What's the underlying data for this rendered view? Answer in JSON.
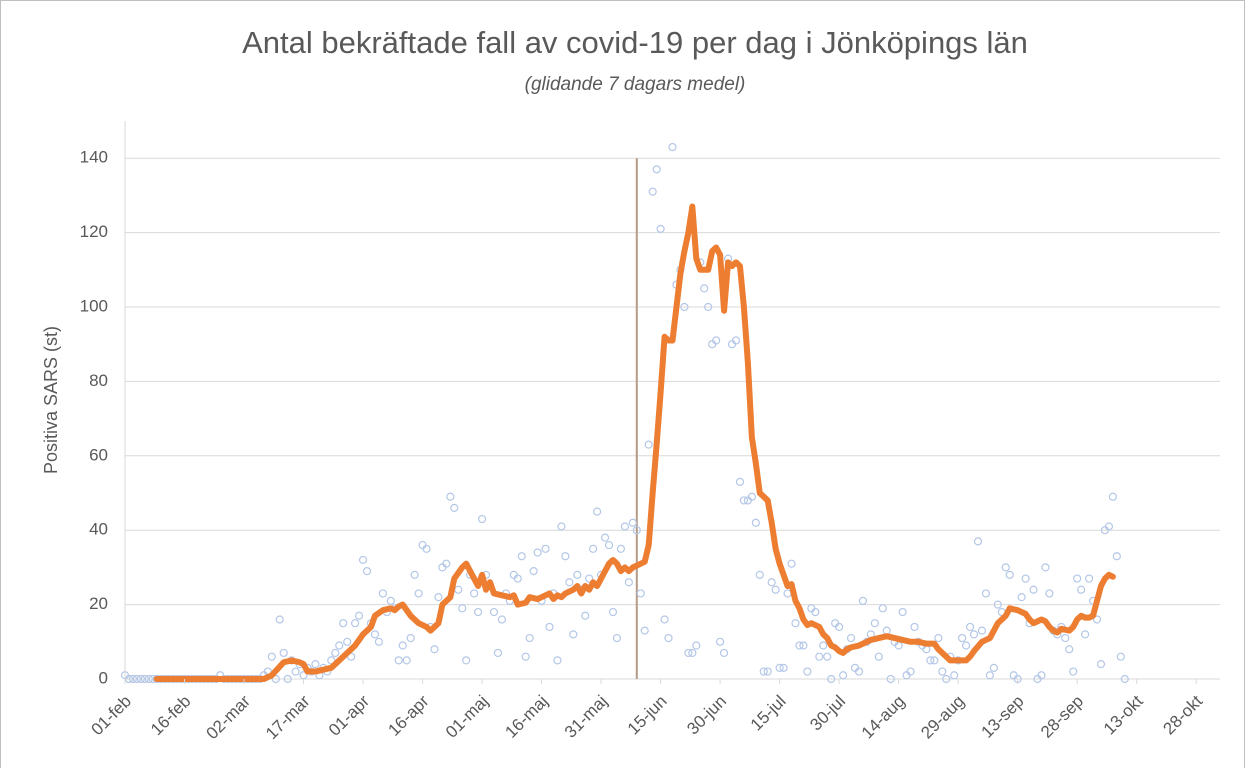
{
  "chart_data": {
    "type": "line",
    "title": "Antal bekräftade fall av covid-19 per dag i Jönköpings län",
    "subtitle": "(glidande 7 dagars medel)",
    "y_label": "Positiva SARS (st)",
    "xlim": [
      0,
      276
    ],
    "xticks": [
      {
        "value": 0,
        "label": "01-feb"
      },
      {
        "value": 15,
        "label": "16-feb"
      },
      {
        "value": 30,
        "label": "02-mar"
      },
      {
        "value": 45,
        "label": "17-mar"
      },
      {
        "value": 60,
        "label": "01-apr"
      },
      {
        "value": 75,
        "label": "16-apr"
      },
      {
        "value": 90,
        "label": "01-maj"
      },
      {
        "value": 105,
        "label": "16-maj"
      },
      {
        "value": 120,
        "label": "31-maj"
      },
      {
        "value": 135,
        "label": "15-jun"
      },
      {
        "value": 150,
        "label": "30-jun"
      },
      {
        "value": 165,
        "label": "15-jul"
      },
      {
        "value": 180,
        "label": "30-jul"
      },
      {
        "value": 195,
        "label": "14-aug"
      },
      {
        "value": 210,
        "label": "29-aug"
      },
      {
        "value": 225,
        "label": "13-sep"
      },
      {
        "value": 240,
        "label": "28-sep"
      },
      {
        "value": 255,
        "label": "13-okt"
      },
      {
        "value": 270,
        "label": "28-okt"
      }
    ],
    "ylim": [
      0,
      150
    ],
    "yticks": [
      0,
      20,
      40,
      60,
      80,
      100,
      120,
      140
    ],
    "grid": true,
    "vline": {
      "x": 129,
      "color": "#b59a85"
    },
    "series": [
      {
        "type": "scatter",
        "color": "#b4c7e7",
        "x": [
          0,
          1,
          2,
          3,
          4,
          5,
          6,
          7,
          8,
          9,
          10,
          11,
          12,
          13,
          14,
          15,
          16,
          17,
          18,
          19,
          20,
          21,
          22,
          23,
          24,
          25,
          26,
          27,
          28,
          29,
          30,
          31,
          32,
          33,
          34,
          35,
          36,
          37,
          38,
          39,
          40,
          41,
          42,
          43,
          44,
          45,
          46,
          47,
          48,
          49,
          50,
          51,
          52,
          53,
          54,
          55,
          56,
          57,
          58,
          59,
          60,
          61,
          62,
          63,
          64,
          65,
          66,
          67,
          68,
          69,
          70,
          71,
          72,
          73,
          74,
          75,
          76,
          77,
          78,
          79,
          80,
          81,
          82,
          83,
          84,
          85,
          86,
          87,
          88,
          89,
          90,
          91,
          92,
          93,
          94,
          95,
          96,
          97,
          98,
          99,
          100,
          101,
          102,
          103,
          104,
          105,
          106,
          107,
          108,
          109,
          110,
          111,
          112,
          113,
          114,
          115,
          116,
          117,
          118,
          119,
          120,
          121,
          122,
          123,
          124,
          125,
          126,
          127,
          128,
          129,
          130,
          131,
          132,
          133,
          134,
          135,
          136,
          137,
          138,
          139,
          140,
          141,
          142,
          143,
          144,
          145,
          146,
          147,
          148,
          149,
          150,
          151,
          152,
          153,
          154,
          155,
          156,
          157,
          158,
          159,
          160,
          161,
          162,
          163,
          164,
          165,
          166,
          167,
          168,
          169,
          170,
          171,
          172,
          173,
          174,
          175,
          176,
          177,
          178,
          179,
          180,
          181,
          182,
          183,
          184,
          185,
          186,
          187,
          188,
          189,
          190,
          191,
          192,
          193,
          194,
          195,
          196,
          197,
          198,
          199,
          200,
          201,
          202,
          203,
          204,
          205,
          206,
          207,
          208,
          209,
          210,
          211,
          212,
          213,
          214,
          215,
          216,
          217,
          218,
          219,
          220,
          221,
          222,
          223,
          224,
          225,
          226,
          227,
          228,
          229,
          230,
          231,
          232,
          233,
          234,
          235,
          236,
          237,
          238,
          239,
          240,
          241,
          242,
          243,
          244,
          245,
          246,
          247,
          248,
          249,
          250,
          251,
          252
        ],
        "values": [
          1,
          0,
          0,
          0,
          0,
          0,
          0,
          0,
          0,
          0,
          0,
          0,
          0,
          0,
          0,
          0,
          0,
          0,
          0,
          0,
          0,
          0,
          0,
          0,
          1,
          0,
          0,
          0,
          0,
          0,
          0,
          0,
          0,
          0,
          0,
          1,
          2,
          6,
          0,
          16,
          7,
          0,
          5,
          2,
          4,
          1,
          3,
          2,
          4,
          1,
          3,
          2,
          5,
          7,
          9,
          15,
          10,
          6,
          15,
          17,
          32,
          29,
          15,
          12,
          10,
          23,
          18,
          21,
          19,
          5,
          9,
          5,
          11,
          28,
          23,
          36,
          35,
          14,
          8,
          22,
          30,
          31,
          49,
          46,
          24,
          19,
          5,
          28,
          23,
          18,
          43,
          28,
          25,
          18,
          7,
          16,
          23,
          21,
          28,
          27,
          33,
          6,
          11,
          29,
          34,
          21,
          35,
          14,
          23,
          5,
          41,
          33,
          26,
          12,
          28,
          24,
          17,
          27,
          35,
          45,
          28,
          38,
          36,
          18,
          11,
          35,
          41,
          26,
          42,
          40,
          23,
          13,
          63,
          131,
          137,
          121,
          16,
          11,
          143,
          106,
          110,
          100,
          7,
          7,
          9,
          112,
          105,
          100,
          90,
          91,
          10,
          7,
          113,
          90,
          91,
          53,
          48,
          48,
          49,
          42,
          28,
          2,
          2,
          26,
          24,
          3,
          3,
          23,
          31,
          15,
          9,
          9,
          2,
          19,
          18,
          6,
          9,
          6,
          0,
          15,
          14,
          1,
          8,
          11,
          3,
          2,
          21,
          10,
          12,
          15,
          6,
          19,
          13,
          0,
          10,
          9,
          18,
          1,
          2,
          14,
          10,
          9,
          8,
          5,
          5,
          11,
          2,
          0,
          6,
          1,
          5,
          11,
          9,
          14,
          12,
          37,
          13,
          23,
          1,
          3,
          20,
          18,
          30,
          28,
          1,
          0,
          22,
          27,
          15,
          24,
          0,
          1,
          30,
          23,
          13,
          12,
          14,
          11,
          8,
          2,
          27,
          24,
          12,
          27,
          21,
          16,
          4,
          40,
          41,
          49,
          33,
          6,
          0
        ]
      },
      {
        "type": "line",
        "color": "#ed7d31",
        "x": [
          8,
          34,
          35,
          37,
          40,
          42,
          44,
          45,
          46,
          48,
          50,
          52,
          54,
          56,
          58,
          60,
          62,
          63,
          65,
          67,
          68,
          69,
          70,
          72,
          74,
          76,
          77,
          78,
          79,
          80,
          81,
          82,
          83,
          85,
          86,
          87,
          88,
          89,
          90,
          91,
          92,
          93,
          95,
          97,
          98,
          99,
          101,
          102,
          104,
          105,
          107,
          108,
          109,
          110,
          111,
          113,
          114,
          115,
          116,
          117,
          118,
          119,
          120,
          121,
          122,
          123,
          124,
          125,
          126,
          127,
          128,
          130,
          131,
          132,
          133,
          134,
          135,
          136,
          137,
          138,
          139,
          140,
          141,
          142,
          143,
          144,
          145,
          146,
          147,
          148,
          149,
          150,
          151,
          152,
          153,
          154,
          155,
          156,
          157,
          158,
          159,
          160,
          161,
          162,
          163,
          164,
          165,
          166,
          167,
          168,
          169,
          170,
          171,
          172,
          173,
          174,
          175,
          176,
          177,
          178,
          179,
          180,
          181,
          182,
          183,
          185,
          186,
          187,
          188,
          190,
          192,
          194,
          196,
          198,
          200,
          202,
          204,
          205,
          206,
          207,
          208,
          210,
          212,
          213,
          214,
          216,
          218,
          219,
          220,
          222,
          223,
          225,
          227,
          228,
          229,
          231,
          232,
          233,
          234,
          235,
          236,
          238,
          239,
          240,
          241,
          242,
          243,
          244,
          245,
          246,
          247,
          248,
          249
        ],
        "values": [
          0,
          0,
          0,
          1,
          4.5,
          5,
          4.5,
          4,
          2,
          2,
          2.5,
          3,
          5,
          7,
          9,
          12,
          14,
          17,
          18.5,
          19,
          18.5,
          19.5,
          20,
          17,
          15,
          14,
          13,
          14,
          15,
          20,
          21,
          22,
          27,
          30,
          31,
          29,
          27,
          25,
          28,
          24,
          26,
          23,
          22.5,
          22,
          22.5,
          20,
          20.5,
          22,
          21.5,
          22,
          23,
          21.5,
          22.5,
          22,
          23,
          24,
          25,
          23,
          25,
          24,
          26,
          25,
          27,
          29,
          31,
          32,
          31,
          29,
          30,
          29,
          30,
          31,
          31.5,
          36,
          50,
          63,
          77,
          92,
          91,
          91,
          100,
          109,
          115,
          120,
          127,
          113,
          110,
          110,
          110,
          115,
          116,
          114,
          99,
          112,
          111,
          112,
          111,
          100,
          85,
          65,
          58,
          50,
          49,
          48,
          42,
          35,
          31,
          28,
          25,
          25.5,
          21,
          19,
          16,
          14.5,
          15,
          14.5,
          14,
          12,
          11,
          9,
          8.5,
          7.5,
          7,
          8,
          8.5,
          9,
          9.5,
          10,
          10.5,
          11,
          11.5,
          11,
          10.5,
          10,
          10,
          9.5,
          9.5,
          8,
          7,
          6,
          5,
          5,
          5,
          6,
          7.5,
          10,
          11,
          13,
          15,
          17,
          19,
          18.5,
          17.5,
          16,
          15,
          16,
          15.5,
          14,
          13,
          12.5,
          13.5,
          13,
          14,
          16,
          17,
          16.5,
          16.5,
          17,
          21,
          25,
          27,
          28,
          27.5
        ]
      }
    ]
  }
}
